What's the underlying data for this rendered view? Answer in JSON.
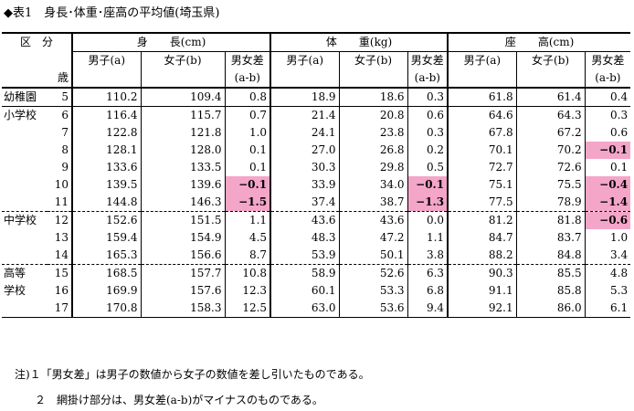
{
  "title": "◆表1　身長･体重･座高の平均値(埼玉県)",
  "header": {
    "category_label": "区　分",
    "age_label": "歳",
    "groups": [
      "身　　長(cm)",
      "体　　重(kg)",
      "座　　高(cm)"
    ],
    "subcols": [
      "男子(a)",
      "女子(b)",
      "男女差"
    ],
    "diff_formula": "(a-b)"
  },
  "rows": [
    {
      "cat": "幼稚園",
      "age": "5",
      "v": [
        "110.2",
        "109.4",
        "0.8",
        "18.9",
        "18.6",
        "0.3",
        "61.8",
        "61.4",
        "0.4"
      ],
      "neg": []
    },
    {
      "cat": "小学校",
      "age": "6",
      "v": [
        "116.4",
        "115.7",
        "0.7",
        "21.4",
        "20.8",
        "0.6",
        "64.6",
        "64.3",
        "0.3"
      ],
      "neg": []
    },
    {
      "cat": "",
      "age": "7",
      "v": [
        "122.8",
        "121.8",
        "1.0",
        "24.1",
        "23.8",
        "0.3",
        "67.8",
        "67.2",
        "0.6"
      ],
      "neg": []
    },
    {
      "cat": "",
      "age": "8",
      "v": [
        "128.1",
        "128.0",
        "0.1",
        "27.0",
        "26.8",
        "0.2",
        "70.1",
        "70.2",
        "−0.1"
      ],
      "neg": [
        8
      ]
    },
    {
      "cat": "",
      "age": "9",
      "v": [
        "133.6",
        "133.5",
        "0.1",
        "30.3",
        "29.8",
        "0.5",
        "72.7",
        "72.6",
        "0.1"
      ],
      "neg": []
    },
    {
      "cat": "",
      "age": "10",
      "v": [
        "139.5",
        "139.6",
        "−0.1",
        "33.9",
        "34.0",
        "−0.1",
        "75.1",
        "75.5",
        "−0.4"
      ],
      "neg": [
        2,
        5,
        8
      ]
    },
    {
      "cat": "",
      "age": "11",
      "v": [
        "144.8",
        "146.3",
        "−1.5",
        "37.4",
        "38.7",
        "−1.3",
        "77.5",
        "78.9",
        "−1.4"
      ],
      "neg": [
        2,
        5,
        8
      ]
    },
    {
      "cat": "中学校",
      "age": "12",
      "v": [
        "152.6",
        "151.5",
        "1.1",
        "43.6",
        "43.6",
        "0.0",
        "81.2",
        "81.8",
        "−0.6"
      ],
      "neg": [
        8
      ]
    },
    {
      "cat": "",
      "age": "13",
      "v": [
        "159.4",
        "154.9",
        "4.5",
        "48.3",
        "47.2",
        "1.1",
        "84.7",
        "83.7",
        "1.0"
      ],
      "neg": []
    },
    {
      "cat": "",
      "age": "14",
      "v": [
        "165.3",
        "156.6",
        "8.7",
        "53.9",
        "50.1",
        "3.8",
        "88.2",
        "84.8",
        "3.4"
      ],
      "neg": []
    },
    {
      "cat": "高等",
      "age": "15",
      "v": [
        "168.5",
        "157.7",
        "10.8",
        "58.9",
        "52.6",
        "6.3",
        "90.3",
        "85.5",
        "4.8"
      ],
      "neg": []
    },
    {
      "cat": "学校",
      "age": "16",
      "v": [
        "169.9",
        "157.6",
        "12.3",
        "60.1",
        "53.3",
        "6.8",
        "91.1",
        "85.8",
        "5.3"
      ],
      "neg": []
    },
    {
      "cat": "",
      "age": "17",
      "v": [
        "170.8",
        "158.3",
        "12.5",
        "63.0",
        "53.6",
        "9.4",
        "92.1",
        "86.0",
        "6.1"
      ],
      "neg": []
    }
  ],
  "notes": [
    "注)１「男女差」は男子の数値から女子の数値を差し引いたものである。",
    "２　網掛け部分は、男女差(a-b)がマイナスのものである。"
  ],
  "colors": {
    "negative_highlight": "#f4a6c8"
  }
}
